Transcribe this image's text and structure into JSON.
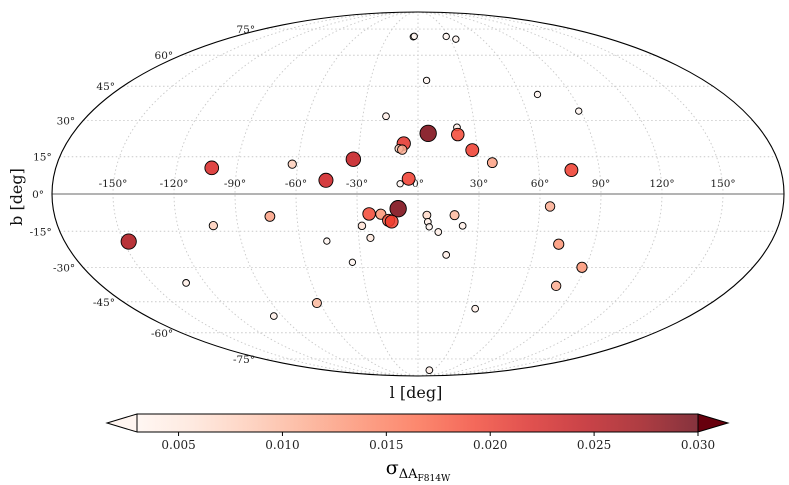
{
  "chart_data": {
    "type": "scatter",
    "projection": "mollweide",
    "title": "",
    "xlabel": "l [deg]",
    "ylabel": "b [deg]",
    "xlim": [
      -180,
      180
    ],
    "ylim": [
      -90,
      90
    ],
    "grid": true,
    "longitude_ticks": [
      "-150°",
      "-120°",
      "-90°",
      "-60°",
      "-30°",
      "0°",
      "30°",
      "60°",
      "90°",
      "120°",
      "150°"
    ],
    "latitude_ticks": [
      "75°",
      "60°",
      "45°",
      "30°",
      "15°",
      "0°",
      "-15°",
      "-30°",
      "-45°",
      "-60°",
      "-75°"
    ],
    "colorbar": {
      "label": "σ_ΔA_F814W",
      "label_main": "σ",
      "label_sub": "ΔA",
      "label_subsub": "F814W",
      "cmap": "Reds",
      "range": [
        0.003,
        0.03
      ],
      "ticks": [
        "0.005",
        "0.010",
        "0.015",
        "0.020",
        "0.025",
        "0.030"
      ],
      "extend": "both"
    },
    "size_note": "marker size grows with value",
    "points": [
      {
        "l": -4.6,
        "b": 70.2,
        "v": 0.003
      },
      {
        "l": -3.7,
        "b": 70.5,
        "v": 0.003
      },
      {
        "l": 27.7,
        "b": 70.4,
        "v": 0.003
      },
      {
        "l": 35.4,
        "b": 68.8,
        "v": 0.003
      },
      {
        "l": 5.4,
        "b": 47.7,
        "v": 0.003
      },
      {
        "l": 70.2,
        "b": 41.3,
        "v": 0.003
      },
      {
        "l": 88.8,
        "b": 34.0,
        "v": 0.003
      },
      {
        "l": -17.4,
        "b": 31.8,
        "v": 0.004
      },
      {
        "l": 20.6,
        "b": 27.1,
        "v": 0.004
      },
      {
        "l": 5.3,
        "b": 24.6,
        "v": 0.029
      },
      {
        "l": 20.7,
        "b": 24.1,
        "v": 0.019
      },
      {
        "l": -7.3,
        "b": 20.4,
        "v": 0.021
      },
      {
        "l": -9.6,
        "b": 18.3,
        "v": 0.008
      },
      {
        "l": -8.0,
        "b": 17.9,
        "v": 0.011
      },
      {
        "l": 27.5,
        "b": 17.7,
        "v": 0.02
      },
      {
        "l": -32.4,
        "b": 14.0,
        "v": 0.024
      },
      {
        "l": 37.1,
        "b": 12.6,
        "v": 0.012
      },
      {
        "l": -62.7,
        "b": 12.0,
        "v": 0.008
      },
      {
        "l": -102.5,
        "b": 10.5,
        "v": 0.022
      },
      {
        "l": 76.1,
        "b": 9.6,
        "v": 0.02
      },
      {
        "l": -45.4,
        "b": 5.5,
        "v": 0.023
      },
      {
        "l": -4.6,
        "b": 6.1,
        "v": 0.02
      },
      {
        "l": -8.8,
        "b": 4.1,
        "v": 0.003
      },
      {
        "l": 65.1,
        "b": -5.0,
        "v": 0.011
      },
      {
        "l": -9.8,
        "b": -5.9,
        "v": 0.029
      },
      {
        "l": -24.2,
        "b": -8.0,
        "v": 0.019
      },
      {
        "l": -18.4,
        "b": -8.1,
        "v": 0.013
      },
      {
        "l": 4.4,
        "b": -8.5,
        "v": 0.007
      },
      {
        "l": 18.1,
        "b": -8.5,
        "v": 0.01
      },
      {
        "l": -73.4,
        "b": -9.0,
        "v": 0.012
      },
      {
        "l": -14.6,
        "b": -10.6,
        "v": 0.018
      },
      {
        "l": -13.1,
        "b": -11.1,
        "v": 0.02
      },
      {
        "l": 4.9,
        "b": -11.2,
        "v": 0.004
      },
      {
        "l": -28.0,
        "b": -12.8,
        "v": 0.006
      },
      {
        "l": -102.2,
        "b": -12.7,
        "v": 0.008
      },
      {
        "l": 22.3,
        "b": -12.8,
        "v": 0.004
      },
      {
        "l": 5.6,
        "b": -13.2,
        "v": 0.003
      },
      {
        "l": 10.2,
        "b": -15.3,
        "v": 0.004
      },
      {
        "l": -24.1,
        "b": -17.7,
        "v": 0.005
      },
      {
        "l": -46.4,
        "b": -19.0,
        "v": 0.003
      },
      {
        "l": -147.4,
        "b": -19.2,
        "v": 0.026
      },
      {
        "l": 72.0,
        "b": -20.3,
        "v": 0.013
      },
      {
        "l": 14.7,
        "b": -24.7,
        "v": 0.004
      },
      {
        "l": -34.8,
        "b": -27.8,
        "v": 0.003
      },
      {
        "l": 88.1,
        "b": -29.9,
        "v": 0.013
      },
      {
        "l": 78.7,
        "b": -37.9,
        "v": 0.011
      },
      {
        "l": -130.7,
        "b": -36.6,
        "v": 0.004
      },
      {
        "l": -62.1,
        "b": -45.6,
        "v": 0.01
      },
      {
        "l": 36.2,
        "b": -48.2,
        "v": 0.004
      },
      {
        "l": -95.6,
        "b": -51.7,
        "v": 0.004
      },
      {
        "l": 22.2,
        "b": -83.3,
        "v": 0.004
      }
    ]
  }
}
